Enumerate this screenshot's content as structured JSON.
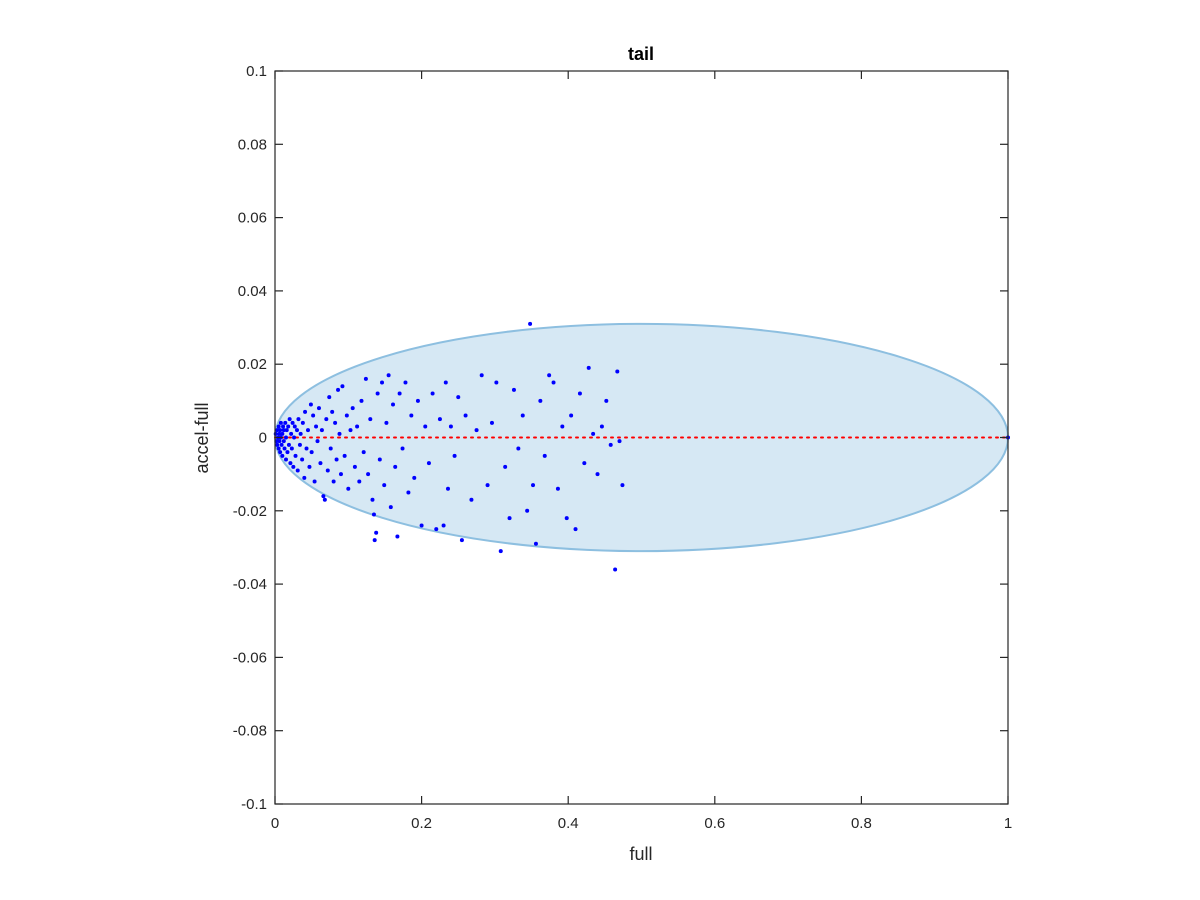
{
  "chart_data": {
    "type": "scatter",
    "title": "tail",
    "xlabel": "full",
    "ylabel": "accel-full",
    "xlim": [
      0,
      1
    ],
    "ylim": [
      -0.1,
      0.1
    ],
    "xticks": [
      0,
      0.2,
      0.4,
      0.6,
      0.8,
      1
    ],
    "xtick_labels": [
      "0",
      "0.2",
      "0.4",
      "0.6",
      "0.8",
      "1"
    ],
    "yticks": [
      -0.1,
      -0.08,
      -0.06,
      -0.04,
      -0.02,
      0,
      0.02,
      0.04,
      0.06,
      0.08,
      0.1
    ],
    "ytick_labels": [
      "-0.1",
      "-0.08",
      "-0.06",
      "-0.04",
      "-0.02",
      "0",
      "0.02",
      "0.04",
      "0.06",
      "0.08",
      "0.1"
    ],
    "grid": false,
    "colors": {
      "points": "#0000ff",
      "ellipse_fill": "#d6e8f4",
      "ellipse_stroke": "#8dbfe0",
      "reference_line": "#ff0000",
      "axes": "#262626"
    },
    "ellipse": {
      "cx": 0.5,
      "cy": 0,
      "rx": 0.5,
      "ry": 0.031
    },
    "reference_line": {
      "y": 0,
      "x": [
        0,
        1
      ],
      "style": "dotted"
    },
    "series": [
      {
        "values": [
          [
            0.001,
            0.001
          ],
          [
            0.002,
            -0.001
          ],
          [
            0.003,
            0.002
          ],
          [
            0.003,
            -0.002
          ],
          [
            0.004,
            0.0
          ],
          [
            0.005,
            0.003
          ],
          [
            0.005,
            -0.003
          ],
          [
            0.006,
            0.001
          ],
          [
            0.006,
            -0.001
          ],
          [
            0.007,
            0.002
          ],
          [
            0.007,
            -0.004
          ],
          [
            0.008,
            0.0
          ],
          [
            0.008,
            0.004
          ],
          [
            0.009,
            -0.002
          ],
          [
            0.01,
            0.001
          ],
          [
            0.01,
            -0.005
          ],
          [
            0.011,
            0.003
          ],
          [
            0.012,
            -0.001
          ],
          [
            0.012,
            0.002
          ],
          [
            0.013,
            -0.003
          ],
          [
            0.014,
            0.004
          ],
          [
            0.015,
            -0.006
          ],
          [
            0.015,
            0.0
          ],
          [
            0.016,
            0.002
          ],
          [
            0.017,
            -0.004
          ],
          [
            0.018,
            0.003
          ],
          [
            0.019,
            -0.002
          ],
          [
            0.02,
            0.005
          ],
          [
            0.021,
            -0.007
          ],
          [
            0.022,
            0.001
          ],
          [
            0.023,
            -0.003
          ],
          [
            0.024,
            0.004
          ],
          [
            0.025,
            -0.008
          ],
          [
            0.026,
            0.0
          ],
          [
            0.027,
            0.003
          ],
          [
            0.028,
            -0.005
          ],
          [
            0.03,
            0.002
          ],
          [
            0.031,
            -0.009
          ],
          [
            0.032,
            0.005
          ],
          [
            0.034,
            -0.002
          ],
          [
            0.035,
            0.001
          ],
          [
            0.037,
            -0.006
          ],
          [
            0.038,
            0.004
          ],
          [
            0.04,
            -0.011
          ],
          [
            0.041,
            0.007
          ],
          [
            0.043,
            -0.003
          ],
          [
            0.045,
            0.002
          ],
          [
            0.047,
            -0.008
          ],
          [
            0.049,
            0.009
          ],
          [
            0.05,
            -0.004
          ],
          [
            0.052,
            0.006
          ],
          [
            0.054,
            -0.012
          ],
          [
            0.056,
            0.003
          ],
          [
            0.058,
            -0.001
          ],
          [
            0.06,
            0.008
          ],
          [
            0.062,
            -0.007
          ],
          [
            0.064,
            0.002
          ],
          [
            0.066,
            -0.016
          ],
          [
            0.068,
            -0.017
          ],
          [
            0.07,
            0.005
          ],
          [
            0.072,
            -0.009
          ],
          [
            0.074,
            0.011
          ],
          [
            0.076,
            -0.003
          ],
          [
            0.078,
            0.007
          ],
          [
            0.08,
            -0.012
          ],
          [
            0.082,
            0.004
          ],
          [
            0.084,
            -0.006
          ],
          [
            0.086,
            0.013
          ],
          [
            0.088,
            0.001
          ],
          [
            0.09,
            -0.01
          ],
          [
            0.092,
            0.014
          ],
          [
            0.095,
            -0.005
          ],
          [
            0.098,
            0.006
          ],
          [
            0.1,
            -0.014
          ],
          [
            0.103,
            0.002
          ],
          [
            0.106,
            0.008
          ],
          [
            0.109,
            -0.008
          ],
          [
            0.112,
            0.003
          ],
          [
            0.115,
            -0.012
          ],
          [
            0.118,
            0.01
          ],
          [
            0.121,
            -0.004
          ],
          [
            0.124,
            0.016
          ],
          [
            0.127,
            -0.01
          ],
          [
            0.13,
            0.005
          ],
          [
            0.133,
            -0.017
          ],
          [
            0.135,
            -0.021
          ],
          [
            0.136,
            -0.028
          ],
          [
            0.138,
            -0.026
          ],
          [
            0.14,
            0.012
          ],
          [
            0.143,
            -0.006
          ],
          [
            0.146,
            0.015
          ],
          [
            0.149,
            -0.013
          ],
          [
            0.152,
            0.004
          ],
          [
            0.155,
            0.017
          ],
          [
            0.158,
            -0.019
          ],
          [
            0.161,
            0.009
          ],
          [
            0.164,
            -0.008
          ],
          [
            0.167,
            -0.027
          ],
          [
            0.17,
            0.012
          ],
          [
            0.174,
            -0.003
          ],
          [
            0.178,
            0.015
          ],
          [
            0.182,
            -0.015
          ],
          [
            0.186,
            0.006
          ],
          [
            0.19,
            -0.011
          ],
          [
            0.195,
            0.01
          ],
          [
            0.2,
            -0.024
          ],
          [
            0.205,
            0.003
          ],
          [
            0.21,
            -0.007
          ],
          [
            0.215,
            0.012
          ],
          [
            0.22,
            -0.025
          ],
          [
            0.225,
            0.005
          ],
          [
            0.23,
            -0.024
          ],
          [
            0.233,
            0.015
          ],
          [
            0.236,
            -0.014
          ],
          [
            0.24,
            0.003
          ],
          [
            0.245,
            -0.005
          ],
          [
            0.25,
            0.011
          ],
          [
            0.255,
            -0.028
          ],
          [
            0.26,
            0.006
          ],
          [
            0.268,
            -0.017
          ],
          [
            0.275,
            0.002
          ],
          [
            0.282,
            0.017
          ],
          [
            0.29,
            -0.013
          ],
          [
            0.296,
            0.004
          ],
          [
            0.302,
            0.015
          ],
          [
            0.308,
            -0.031
          ],
          [
            0.314,
            -0.008
          ],
          [
            0.32,
            -0.022
          ],
          [
            0.326,
            0.013
          ],
          [
            0.332,
            -0.003
          ],
          [
            0.338,
            0.006
          ],
          [
            0.344,
            -0.02
          ],
          [
            0.348,
            0.031
          ],
          [
            0.352,
            -0.013
          ],
          [
            0.356,
            -0.029
          ],
          [
            0.362,
            0.01
          ],
          [
            0.368,
            -0.005
          ],
          [
            0.374,
            0.017
          ],
          [
            0.38,
            0.015
          ],
          [
            0.386,
            -0.014
          ],
          [
            0.392,
            0.003
          ],
          [
            0.398,
            -0.022
          ],
          [
            0.404,
            0.006
          ],
          [
            0.41,
            -0.025
          ],
          [
            0.416,
            0.012
          ],
          [
            0.422,
            -0.007
          ],
          [
            0.428,
            0.019
          ],
          [
            0.434,
            0.001
          ],
          [
            0.44,
            -0.01
          ],
          [
            0.446,
            0.003
          ],
          [
            0.452,
            0.01
          ],
          [
            0.458,
            -0.002
          ],
          [
            0.464,
            -0.036
          ],
          [
            0.467,
            0.018
          ],
          [
            0.47,
            -0.001
          ],
          [
            0.474,
            -0.013
          ],
          [
            1.0,
            0.0
          ]
        ]
      }
    ]
  }
}
